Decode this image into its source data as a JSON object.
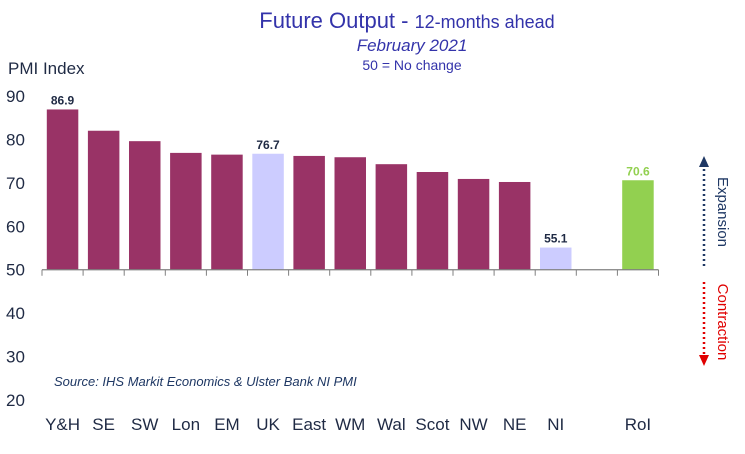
{
  "chart_data": {
    "type": "bar",
    "title_main": "Future Output - ",
    "title_rest": "12-months ahead",
    "subtitle": "February 2021",
    "note": "50 = No change",
    "ylabel": "PMI Index",
    "source": "Source: IHS Markit Economics & Ulster Bank NI PMI",
    "ylim": [
      20,
      90
    ],
    "yticks": [
      20,
      30,
      40,
      50,
      60,
      70,
      80,
      90
    ],
    "baseline": 50,
    "grid": false,
    "legend": "none",
    "categories": [
      "Y&H",
      "SE",
      "SW",
      "Lon",
      "EM",
      "UK",
      "East",
      "WM",
      "Wal",
      "Scot",
      "NW",
      "NE",
      "NI",
      "",
      "RoI"
    ],
    "values": [
      86.9,
      82.0,
      79.6,
      76.9,
      76.5,
      76.7,
      76.2,
      75.9,
      74.3,
      72.5,
      70.9,
      70.2,
      55.1,
      null,
      70.6
    ],
    "colors": [
      "#993366",
      "#993366",
      "#993366",
      "#993366",
      "#993366",
      "#ccccff",
      "#993366",
      "#993366",
      "#993366",
      "#993366",
      "#993366",
      "#993366",
      "#ccccff",
      null,
      "#92d050"
    ],
    "data_labels": [
      {
        "category": "Y&H",
        "text": "86.9",
        "color": "#1f2a44"
      },
      {
        "category": "UK",
        "text": "76.7",
        "color": "#1f2a44"
      },
      {
        "category": "NI",
        "text": "55.1",
        "color": "#1f2a44"
      },
      {
        "category": "RoI",
        "text": "70.6",
        "color": "#92d050"
      }
    ],
    "annotations": {
      "expansion": {
        "text": "Expansion",
        "color": "#1f3864"
      },
      "contraction": {
        "text": "Contraction",
        "color": "#e00000"
      }
    },
    "title_color": "#3333aa",
    "subtitle_color": "#3333aa"
  }
}
